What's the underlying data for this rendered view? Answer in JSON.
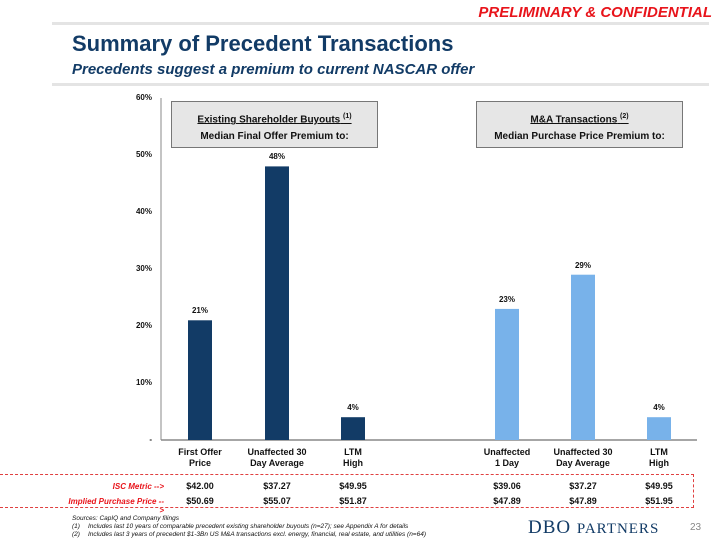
{
  "header": {
    "confidential": "PRELIMINARY & CONFIDENTIAL",
    "title": "Summary of Precedent Transactions",
    "subtitle": "Precedents suggest a premium to current NASCAR offer"
  },
  "groups": [
    {
      "heading": "Existing Shareholder Buyouts",
      "footnote_ref": "(1)",
      "subheading": "Median Final Offer Premium to:"
    },
    {
      "heading": "M&A Transactions",
      "footnote_ref": "(2)",
      "subheading": "Median Purchase Price Premium to:"
    }
  ],
  "chart_data": {
    "type": "bar",
    "title": "",
    "xlabel": "",
    "ylabel": "",
    "ylim": [
      0,
      60
    ],
    "yticks": [
      "-",
      "10%",
      "20%",
      "30%",
      "40%",
      "50%",
      "60%"
    ],
    "grid": false,
    "categories": [
      [
        "First Offer",
        "Price"
      ],
      [
        "Unaffected 30",
        "Day Average"
      ],
      [
        "LTM",
        "High"
      ],
      [
        "Unaffected",
        "1 Day"
      ],
      [
        "Unaffected 30",
        "Day Average"
      ],
      [
        "LTM",
        "High"
      ]
    ],
    "series": [
      {
        "name": "Existing Shareholder Buyouts",
        "color": "#123b66",
        "indices": [
          0,
          1,
          2
        ],
        "values": [
          21,
          48,
          4
        ]
      },
      {
        "name": "M&A Transactions",
        "color": "#78b2ea",
        "indices": [
          3,
          4,
          5
        ],
        "values": [
          23,
          29,
          4
        ]
      }
    ],
    "data_labels": [
      "21%",
      "48%",
      "4%",
      "23%",
      "29%",
      "4%"
    ]
  },
  "table": {
    "rows": [
      {
        "label": "ISC Metric -->",
        "values": [
          "$42.00",
          "$37.27",
          "$49.95",
          "$39.06",
          "$37.27",
          "$49.95"
        ]
      },
      {
        "label": "Implied Purchase  Price -->",
        "values": [
          "$50.69",
          "$55.07",
          "$51.87",
          "$47.89",
          "$47.89",
          "$51.95"
        ]
      }
    ]
  },
  "footer": {
    "sources": "Sources: CapIQ and Company filings",
    "notes": [
      {
        "n": "(1)",
        "text": "Includes last 10 years of comparable precedent existing shareholder buyouts (n=27); see Appendix A for details"
      },
      {
        "n": "(2)",
        "text": "Includes last 3 years of precedent $1-3Bn US M&A transactions excl. energy, financial, real estate, and utilities (n=64)"
      }
    ],
    "logo_first": "DBO",
    "logo_second": "PARTNERS",
    "page_number": "23"
  },
  "colors": {
    "accent_red": "#e8141b",
    "navy": "#123b66",
    "light_blue": "#78b2ea"
  }
}
